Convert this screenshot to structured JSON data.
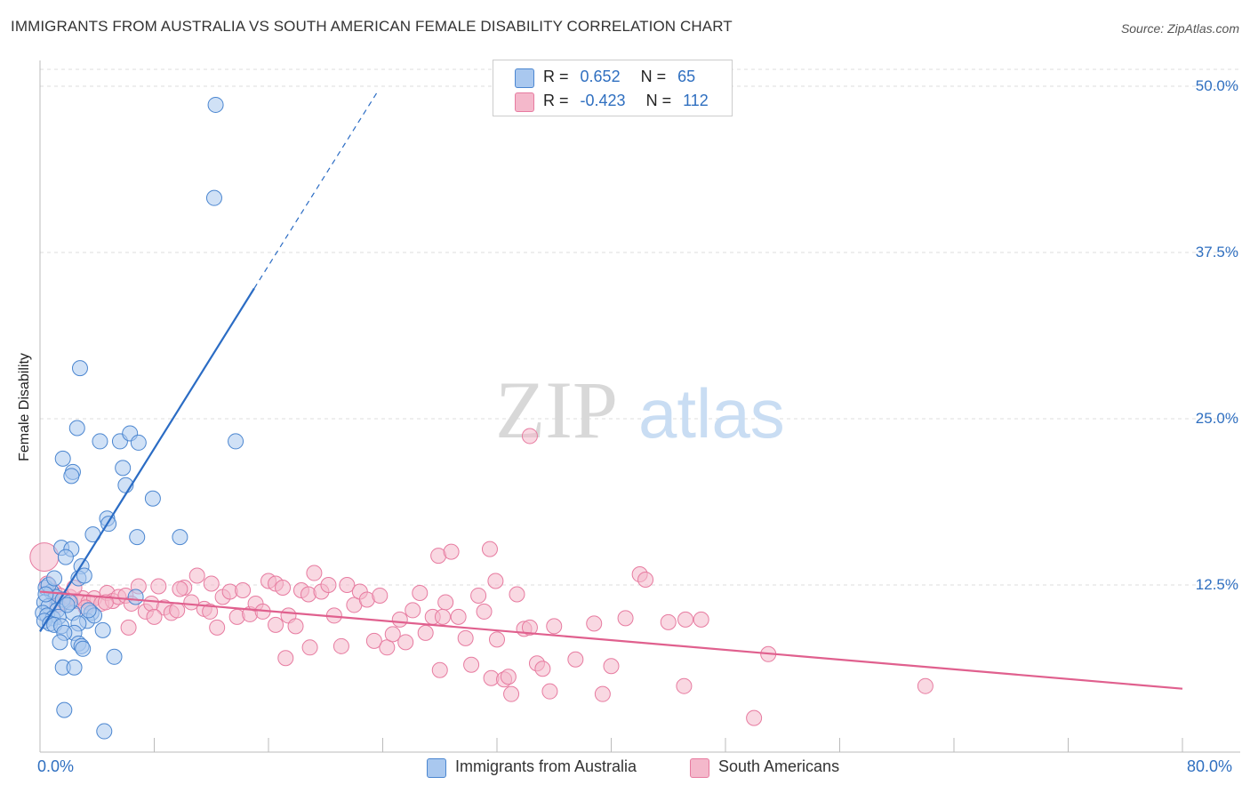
{
  "header": {
    "title": "IMMIGRANTS FROM AUSTRALIA VS SOUTH AMERICAN FEMALE DISABILITY CORRELATION CHART",
    "source": "Source: ZipAtlas.com"
  },
  "watermark": "ZIPatlas",
  "legend": {
    "rows": [
      {
        "r_label": "R =",
        "r_value": "0.652",
        "n_label": "N =",
        "n_value": "65"
      },
      {
        "r_label": "R =",
        "r_value": "-0.423",
        "n_label": "N =",
        "n_value": "112"
      }
    ]
  },
  "bottom_legend": [
    "Immigrants from Australia",
    "South Americans"
  ],
  "colors": {
    "blue_fill": "#a9c8ef",
    "blue_stroke": "#4b86d0",
    "blue_line": "#2b6cc4",
    "pink_fill": "#f4b8cb",
    "pink_stroke": "#e77ba0",
    "pink_line": "#e0608e",
    "grid": "#dcdcdc",
    "axis_text": "#2f6fc0"
  },
  "chart_data": {
    "type": "scatter",
    "title": "IMMIGRANTS FROM AUSTRALIA VS SOUTH AMERICAN FEMALE DISABILITY CORRELATION CHART",
    "xlabel": "",
    "ylabel": "Female Disability",
    "xlim": [
      0,
      80
    ],
    "ylim": [
      0,
      50
    ],
    "x_tick_labels": [
      "0.0%",
      "80.0%"
    ],
    "y_ticks": [
      12.5,
      25.0,
      37.5,
      50.0
    ],
    "y_tick_labels": [
      "12.5%",
      "25.0%",
      "37.5%",
      "50.0%"
    ],
    "series": [
      {
        "name": "Immigrants from Australia",
        "r": 0.652,
        "n": 65,
        "trend": {
          "x0": 0.0,
          "y0": 9.0,
          "x1": 15.0,
          "y1": 34.8,
          "dash_to_x": 23.7,
          "dash_to_y": 49.7
        },
        "points": [
          [
            12.3,
            48.6
          ],
          [
            12.2,
            41.6
          ],
          [
            2.8,
            28.8
          ],
          [
            2.6,
            24.3
          ],
          [
            4.2,
            23.3
          ],
          [
            5.6,
            23.3
          ],
          [
            6.3,
            23.9
          ],
          [
            6.9,
            23.2
          ],
          [
            13.7,
            23.3
          ],
          [
            1.6,
            22.0
          ],
          [
            2.3,
            21.0
          ],
          [
            2.2,
            20.7
          ],
          [
            5.8,
            21.3
          ],
          [
            7.9,
            19.0
          ],
          [
            6.0,
            20.0
          ],
          [
            4.7,
            17.5
          ],
          [
            4.8,
            17.1
          ],
          [
            3.7,
            16.3
          ],
          [
            6.8,
            16.1
          ],
          [
            9.8,
            16.1
          ],
          [
            1.5,
            15.3
          ],
          [
            2.2,
            15.2
          ],
          [
            1.8,
            14.6
          ],
          [
            2.9,
            13.9
          ],
          [
            2.7,
            13.0
          ],
          [
            3.1,
            13.2
          ],
          [
            0.4,
            12.3
          ],
          [
            0.8,
            12.0
          ],
          [
            1.1,
            11.6
          ],
          [
            1.6,
            11.4
          ],
          [
            0.3,
            11.2
          ],
          [
            0.6,
            10.9
          ],
          [
            1.2,
            10.6
          ],
          [
            0.2,
            10.4
          ],
          [
            0.5,
            10.2
          ],
          [
            0.9,
            10.0
          ],
          [
            1.3,
            10.1
          ],
          [
            0.3,
            9.8
          ],
          [
            0.7,
            9.6
          ],
          [
            1.0,
            9.5
          ],
          [
            1.5,
            9.4
          ],
          [
            2.3,
            10.4
          ],
          [
            3.6,
            10.4
          ],
          [
            3.3,
            9.8
          ],
          [
            2.7,
            9.6
          ],
          [
            4.4,
            9.1
          ],
          [
            2.4,
            8.9
          ],
          [
            1.7,
            8.9
          ],
          [
            1.4,
            8.2
          ],
          [
            2.7,
            8.1
          ],
          [
            2.9,
            7.9
          ],
          [
            3.0,
            7.7
          ],
          [
            5.2,
            7.1
          ],
          [
            1.6,
            6.3
          ],
          [
            2.4,
            6.3
          ],
          [
            1.7,
            3.1
          ],
          [
            4.5,
            1.5
          ],
          [
            3.8,
            10.2
          ],
          [
            6.7,
            11.6
          ],
          [
            2.1,
            11.2
          ],
          [
            0.6,
            12.5
          ],
          [
            1.0,
            13.0
          ],
          [
            0.4,
            11.8
          ],
          [
            1.9,
            11.0
          ],
          [
            3.4,
            10.6
          ]
        ]
      },
      {
        "name": "South Americans",
        "r": -0.423,
        "n": 112,
        "trend": {
          "x0": 0.0,
          "y0": 12.0,
          "x1": 80.0,
          "y1": 4.7
        },
        "points": [
          [
            0.3,
            14.6
          ],
          [
            0.5,
            12.6
          ],
          [
            1.0,
            12.0
          ],
          [
            1.4,
            11.7
          ],
          [
            1.7,
            11.2
          ],
          [
            2.1,
            11.6
          ],
          [
            2.6,
            11.3
          ],
          [
            3.0,
            11.5
          ],
          [
            3.4,
            11.2
          ],
          [
            3.8,
            11.5
          ],
          [
            4.3,
            11.1
          ],
          [
            4.7,
            11.9
          ],
          [
            5.1,
            11.3
          ],
          [
            5.5,
            11.6
          ],
          [
            6.0,
            11.7
          ],
          [
            6.4,
            11.1
          ],
          [
            6.9,
            12.4
          ],
          [
            7.4,
            10.5
          ],
          [
            7.8,
            11.1
          ],
          [
            8.3,
            12.4
          ],
          [
            8.7,
            10.8
          ],
          [
            9.2,
            10.4
          ],
          [
            9.6,
            10.6
          ],
          [
            10.1,
            12.3
          ],
          [
            10.6,
            11.2
          ],
          [
            11.0,
            13.2
          ],
          [
            11.5,
            10.7
          ],
          [
            11.9,
            10.5
          ],
          [
            12.4,
            9.3
          ],
          [
            12.8,
            11.6
          ],
          [
            13.3,
            12.0
          ],
          [
            13.8,
            10.1
          ],
          [
            14.2,
            12.1
          ],
          [
            14.7,
            10.3
          ],
          [
            15.1,
            11.1
          ],
          [
            15.6,
            10.5
          ],
          [
            16.0,
            12.8
          ],
          [
            16.5,
            12.6
          ],
          [
            17.0,
            12.3
          ],
          [
            17.4,
            10.2
          ],
          [
            17.9,
            9.4
          ],
          [
            18.3,
            12.1
          ],
          [
            18.8,
            11.8
          ],
          [
            19.2,
            13.4
          ],
          [
            19.7,
            12.0
          ],
          [
            20.2,
            12.5
          ],
          [
            20.6,
            10.2
          ],
          [
            21.1,
            7.9
          ],
          [
            21.5,
            12.5
          ],
          [
            22.0,
            11.0
          ],
          [
            22.4,
            12.0
          ],
          [
            22.9,
            11.4
          ],
          [
            23.4,
            8.3
          ],
          [
            23.8,
            11.7
          ],
          [
            24.3,
            7.8
          ],
          [
            24.7,
            8.8
          ],
          [
            25.2,
            9.9
          ],
          [
            25.6,
            8.2
          ],
          [
            26.1,
            10.6
          ],
          [
            26.6,
            11.9
          ],
          [
            27.0,
            8.9
          ],
          [
            27.5,
            10.1
          ],
          [
            27.9,
            14.7
          ],
          [
            28.4,
            11.2
          ],
          [
            28.8,
            15.0
          ],
          [
            29.3,
            10.1
          ],
          [
            29.8,
            8.5
          ],
          [
            30.2,
            6.5
          ],
          [
            30.7,
            11.7
          ],
          [
            31.1,
            10.5
          ],
          [
            31.6,
            5.5
          ],
          [
            32.0,
            8.4
          ],
          [
            32.5,
            5.4
          ],
          [
            33.0,
            4.3
          ],
          [
            33.4,
            11.8
          ],
          [
            33.9,
            9.2
          ],
          [
            34.3,
            9.3
          ],
          [
            34.8,
            6.6
          ],
          [
            35.2,
            6.2
          ],
          [
            35.7,
            4.5
          ],
          [
            28.0,
            6.1
          ],
          [
            18.9,
            7.8
          ],
          [
            17.2,
            7.0
          ],
          [
            16.5,
            9.5
          ],
          [
            12.0,
            12.6
          ],
          [
            9.8,
            12.2
          ],
          [
            8.0,
            10.1
          ],
          [
            6.2,
            9.3
          ],
          [
            4.6,
            11.2
          ],
          [
            3.2,
            10.8
          ],
          [
            2.4,
            12.3
          ],
          [
            1.2,
            11.0
          ],
          [
            36.0,
            9.4
          ],
          [
            31.5,
            15.2
          ],
          [
            31.9,
            12.8
          ],
          [
            38.8,
            9.6
          ],
          [
            39.4,
            4.3
          ],
          [
            37.5,
            6.9
          ],
          [
            40.0,
            6.4
          ],
          [
            41.0,
            10.0
          ],
          [
            42.0,
            13.3
          ],
          [
            42.4,
            12.9
          ],
          [
            44.0,
            9.7
          ],
          [
            45.1,
            4.9
          ],
          [
            45.2,
            9.9
          ],
          [
            46.3,
            9.9
          ],
          [
            51.0,
            7.3
          ],
          [
            50.0,
            2.5
          ],
          [
            62.0,
            4.9
          ],
          [
            28.2,
            10.1
          ],
          [
            32.8,
            5.6
          ],
          [
            34.3,
            23.7
          ]
        ]
      }
    ]
  }
}
